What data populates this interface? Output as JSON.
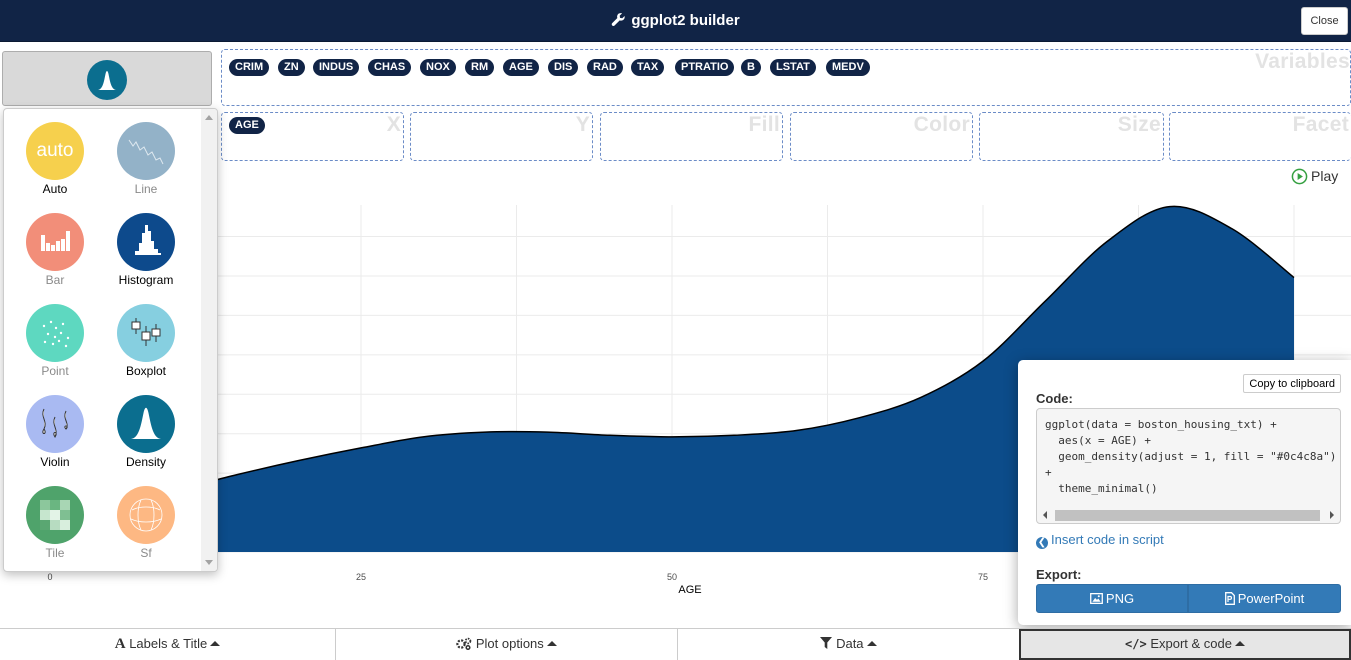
{
  "header": {
    "title": "ggplot2 builder",
    "close_label": "Close"
  },
  "variables": {
    "zone_label": "Variables",
    "items": [
      "CRIM",
      "ZN",
      "INDUS",
      "CHAS",
      "NOX",
      "RM",
      "AGE",
      "DIS",
      "RAD",
      "TAX",
      "PTRATIO",
      "B",
      "LSTAT",
      "MEDV"
    ]
  },
  "mappings": [
    {
      "label": "X",
      "value": "AGE"
    },
    {
      "label": "Y",
      "value": ""
    },
    {
      "label": "Fill",
      "value": ""
    },
    {
      "label": "Color",
      "value": ""
    },
    {
      "label": "Size",
      "value": ""
    },
    {
      "label": "Facet",
      "value": ""
    }
  ],
  "geoms": [
    {
      "label": "Auto",
      "enabled": true,
      "color": "#f6d04d",
      "icon": "auto"
    },
    {
      "label": "Line",
      "enabled": false,
      "color": "#93b2c8",
      "icon": "line"
    },
    {
      "label": "Bar",
      "enabled": false,
      "color": "#f28e79",
      "icon": "bar"
    },
    {
      "label": "Histogram",
      "enabled": true,
      "color": "#0d4a8c",
      "icon": "histogram"
    },
    {
      "label": "Point",
      "enabled": false,
      "color": "#5ed8c0",
      "icon": "point"
    },
    {
      "label": "Boxplot",
      "enabled": true,
      "color": "#86cfe0",
      "icon": "boxplot"
    },
    {
      "label": "Violin",
      "enabled": true,
      "color": "#a9baf2",
      "icon": "violin"
    },
    {
      "label": "Density",
      "enabled": true,
      "color": "#0b6e8f",
      "icon": "density"
    },
    {
      "label": "Tile",
      "enabled": false,
      "color": "#4fa36b",
      "icon": "tile"
    },
    {
      "label": "Sf",
      "enabled": false,
      "color": "#fdb883",
      "icon": "sf"
    }
  ],
  "geom_auto_text": "auto",
  "play_label": "Play",
  "chart_data": {
    "type": "area",
    "xlabel": "AGE",
    "x_ticks": [
      "0",
      "25",
      "50",
      "75"
    ],
    "xlim": [
      0,
      100
    ],
    "ylim": [
      0,
      0.022
    ],
    "fill": "#0c4c8a",
    "grid": true,
    "x": [
      2.9,
      5,
      10,
      15,
      20,
      25,
      30,
      35,
      40,
      45,
      50,
      55,
      60,
      65,
      70,
      75,
      80,
      85,
      90,
      95,
      100
    ],
    "y": [
      0.0029,
      0.0031,
      0.0039,
      0.0049,
      0.0058,
      0.0066,
      0.0073,
      0.0076,
      0.0076,
      0.0074,
      0.0073,
      0.0074,
      0.0077,
      0.0085,
      0.0098,
      0.0121,
      0.0159,
      0.0197,
      0.0219,
      0.0205,
      0.0174
    ]
  },
  "code_panel": {
    "copy_label": "Copy to clipboard",
    "code_label": "Code:",
    "code": "ggplot(data = boston_housing_txt) +\n  aes(x = AGE) +\n  geom_density(adjust = 1, fill = \"#0c4c8a\")\n+\n  theme_minimal()",
    "insert_label": "Insert code in script",
    "export_label": "Export:",
    "png_label": "PNG",
    "ppt_label": "PowerPoint"
  },
  "bottom_tabs": [
    {
      "label": "Labels & Title",
      "icon": "letter-a-icon"
    },
    {
      "label": "Plot options",
      "icon": "gears-icon"
    },
    {
      "label": "Data",
      "icon": "filter-icon"
    },
    {
      "label": "Export & code",
      "icon": "code-icon",
      "active": true
    }
  ]
}
